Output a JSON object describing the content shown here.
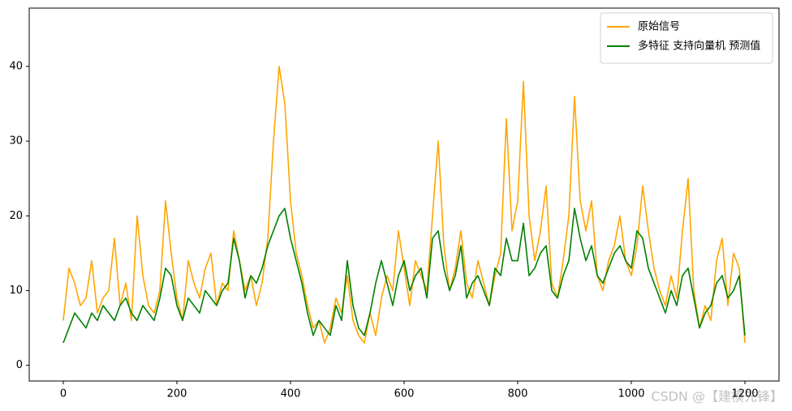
{
  "chart_data": {
    "type": "line",
    "x": [
      0,
      10,
      20,
      30,
      40,
      50,
      60,
      70,
      80,
      90,
      100,
      110,
      120,
      130,
      140,
      150,
      160,
      170,
      180,
      190,
      200,
      210,
      220,
      230,
      240,
      250,
      260,
      270,
      280,
      290,
      300,
      310,
      320,
      330,
      340,
      350,
      360,
      370,
      380,
      390,
      400,
      410,
      420,
      430,
      440,
      450,
      460,
      470,
      480,
      490,
      500,
      510,
      520,
      530,
      540,
      550,
      560,
      570,
      580,
      590,
      600,
      610,
      620,
      630,
      640,
      650,
      660,
      670,
      680,
      690,
      700,
      710,
      720,
      730,
      740,
      750,
      760,
      770,
      780,
      790,
      800,
      810,
      820,
      830,
      840,
      850,
      860,
      870,
      880,
      890,
      900,
      910,
      920,
      930,
      940,
      950,
      960,
      970,
      980,
      990,
      1000,
      1010,
      1020,
      1030,
      1040,
      1050,
      1060,
      1070,
      1080,
      1090,
      1100,
      1110,
      1120,
      1130,
      1140,
      1150,
      1160,
      1170,
      1180,
      1190,
      1200
    ],
    "series": [
      {
        "name": "原始信号",
        "color": "#ffa500",
        "values": [
          6,
          13,
          11,
          8,
          9,
          14,
          7,
          9,
          10,
          17,
          8,
          11,
          6,
          20,
          12,
          8,
          7,
          10,
          22,
          15,
          9,
          6,
          14,
          11,
          9,
          13,
          15,
          8,
          11,
          10,
          18,
          14,
          10,
          12,
          8,
          11,
          17,
          30,
          40,
          35,
          22,
          15,
          12,
          8,
          5,
          6,
          3,
          5,
          9,
          7,
          12,
          6,
          4,
          3,
          7,
          4,
          9,
          12,
          10,
          18,
          13,
          8,
          14,
          12,
          10,
          20,
          30,
          16,
          10,
          13,
          18,
          11,
          9,
          14,
          11,
          8,
          12,
          15,
          33,
          18,
          22,
          38,
          20,
          14,
          18,
          24,
          11,
          9,
          14,
          20,
          36,
          22,
          18,
          22,
          12,
          10,
          14,
          16,
          20,
          14,
          12,
          16,
          24,
          18,
          13,
          10,
          8,
          12,
          9,
          18,
          25,
          10,
          5,
          8,
          6,
          14,
          17,
          8,
          15,
          13,
          3
        ]
      },
      {
        "name": "多特征 支持向量机 预测值",
        "color": "#008000",
        "values": [
          3,
          5,
          7,
          6,
          5,
          7,
          6,
          8,
          7,
          6,
          8,
          9,
          7,
          6,
          8,
          7,
          6,
          9,
          13,
          12,
          8,
          6,
          9,
          8,
          7,
          10,
          9,
          8,
          10,
          11,
          17,
          14,
          9,
          12,
          11,
          13,
          16,
          18,
          20,
          21,
          17,
          14,
          11,
          7,
          4,
          6,
          5,
          4,
          8,
          6,
          14,
          8,
          5,
          4,
          7,
          11,
          14,
          11,
          8,
          12,
          14,
          10,
          12,
          13,
          9,
          17,
          18,
          13,
          10,
          12,
          16,
          9,
          11,
          12,
          10,
          8,
          13,
          12,
          17,
          14,
          14,
          19,
          12,
          13,
          15,
          16,
          10,
          9,
          12,
          14,
          21,
          17,
          14,
          16,
          12,
          11,
          13,
          15,
          16,
          14,
          13,
          18,
          17,
          13,
          11,
          9,
          7,
          10,
          8,
          12,
          13,
          9,
          5,
          7,
          8,
          11,
          12,
          9,
          10,
          12,
          4
        ]
      }
    ],
    "xlim": [
      -60,
      1260
    ],
    "ylim": [
      -2.1,
      47.8
    ],
    "xticks": [
      0,
      200,
      400,
      600,
      800,
      1000,
      1200
    ],
    "yticks": [
      0,
      10,
      20,
      30,
      40
    ],
    "legend": "upper right",
    "grid": false,
    "watermark": "CSDN @【建模先锋】"
  }
}
